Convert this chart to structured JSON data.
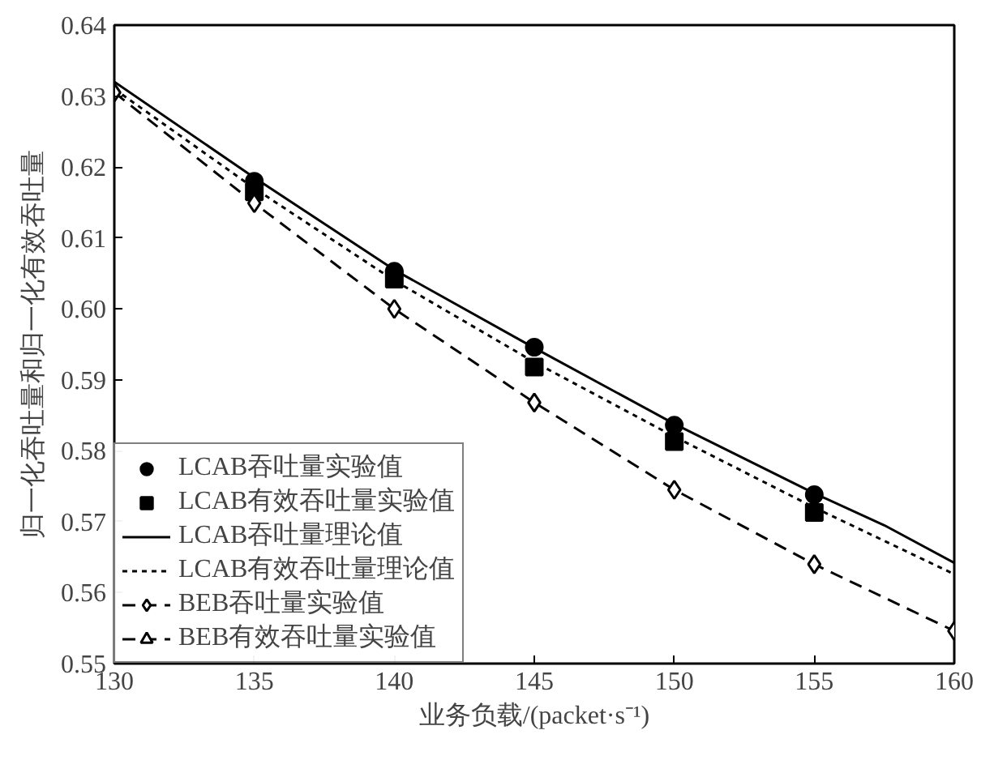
{
  "chart_data": {
    "type": "line",
    "xlabel": "业务负载/(packet·s⁻¹)",
    "ylabel": "归一化吞吐量和归一化有效吞吐量",
    "xlim": [
      130,
      160
    ],
    "xticks": [
      130,
      135,
      140,
      145,
      150,
      155,
      160
    ],
    "ylim": [
      0.55,
      0.64
    ],
    "yticks": [
      {
        "value": 0.55,
        "label": "0.55"
      },
      {
        "value": 0.56,
        "label": "0.56"
      },
      {
        "value": 0.57,
        "label": "0.57"
      },
      {
        "value": 0.58,
        "label": "0.58"
      },
      {
        "value": 0.59,
        "label": "0.59"
      },
      {
        "value": 0.6,
        "label": "0.60"
      },
      {
        "value": 0.61,
        "label": "0.61"
      },
      {
        "value": 0.62,
        "label": "0.62"
      },
      {
        "value": 0.63,
        "label": "0.63"
      },
      {
        "value": 0.64,
        "label": "0.64"
      }
    ],
    "grid": false,
    "legend": "bottom left",
    "series": [
      {
        "name": "LCAB吞吐量实验值",
        "type": "scatter",
        "marker": "circle",
        "color": "#000000",
        "x": [
          135,
          140,
          145,
          150,
          155
        ],
        "values": [
          0.618,
          0.6053,
          0.5946,
          0.5836,
          0.5738
        ]
      },
      {
        "name": "LCAB有效吞吐量实验值",
        "type": "scatter",
        "marker": "square",
        "color": "#000000",
        "x": [
          135,
          140,
          145,
          150,
          155
        ],
        "values": [
          0.6165,
          0.6042,
          0.5918,
          0.5813,
          0.5713
        ]
      },
      {
        "name": "LCAB吞吐量理论值",
        "marker": "none",
        "line_style": "solid",
        "color": "#000000",
        "x": [
          130,
          135,
          140,
          145,
          150,
          155,
          157.5,
          160
        ],
        "values": [
          0.632,
          0.6185,
          0.6055,
          0.5945,
          0.5838,
          0.574,
          0.5695,
          0.5642
        ]
      },
      {
        "name": "LCAB有效吞吐量理论值",
        "marker": "none",
        "line_style": "dotted",
        "color": "#000000",
        "x": [
          130,
          135,
          140,
          145,
          150,
          155,
          160
        ],
        "values": [
          0.631,
          0.617,
          0.604,
          0.5925,
          0.582,
          0.572,
          0.5626
        ]
      },
      {
        "name": "BEB吞吐量实验值",
        "marker": "diamond",
        "line_style": "dashed",
        "color": "#000000",
        "x": [
          130,
          135,
          140,
          145,
          150,
          155,
          160
        ],
        "values": [
          0.6305,
          0.6149,
          0.6,
          0.5868,
          0.5745,
          0.564,
          0.5546
        ]
      },
      {
        "name": "BEB有效吞吐量实验值",
        "marker": "triangle",
        "line_style": "dashed",
        "color": "#000000"
      }
    ]
  }
}
